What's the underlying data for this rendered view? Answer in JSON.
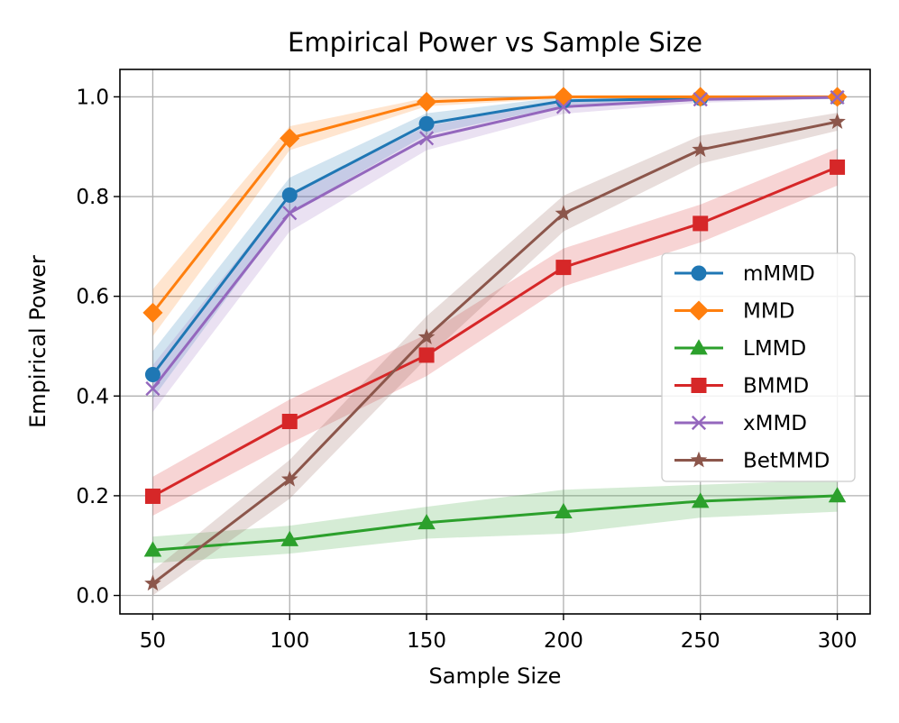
{
  "chart_data": {
    "type": "line",
    "title": "Empirical Power vs Sample Size",
    "xlabel": "Sample Size",
    "ylabel": "Empirical Power",
    "x": [
      50,
      100,
      150,
      200,
      250,
      300
    ],
    "xlim": [
      38,
      312
    ],
    "ylim": [
      -0.037,
      1.055
    ],
    "xticks": [
      50,
      100,
      150,
      200,
      250,
      300
    ],
    "yticks": [
      0.0,
      0.2,
      0.4,
      0.6,
      0.8,
      1.0
    ],
    "ytick_labels": [
      "0.0",
      "0.2",
      "0.4",
      "0.6",
      "0.8",
      "1.0"
    ],
    "grid": true,
    "legend_position": "center-right",
    "series": [
      {
        "name": "mMMD",
        "color": "#1f77b4",
        "marker": "circle",
        "values": [
          0.443,
          0.803,
          0.946,
          0.992,
          0.997,
          0.999
        ],
        "lower": [
          0.395,
          0.768,
          0.924,
          0.982,
          0.992,
          0.996
        ],
        "upper": [
          0.49,
          0.838,
          0.967,
          1.0,
          1.0,
          1.0
        ]
      },
      {
        "name": "MMD",
        "color": "#ff7f0e",
        "marker": "diamond",
        "values": [
          0.567,
          0.917,
          0.99,
          1.0,
          1.0,
          1.0
        ],
        "lower": [
          0.52,
          0.893,
          0.981,
          0.997,
          0.998,
          0.998
        ],
        "upper": [
          0.614,
          0.941,
          0.998,
          1.0,
          1.0,
          1.0
        ]
      },
      {
        "name": "LMMD",
        "color": "#2ca02c",
        "marker": "triangle",
        "values": [
          0.091,
          0.112,
          0.146,
          0.168,
          0.189,
          0.2
        ],
        "lower": [
          0.065,
          0.084,
          0.114,
          0.124,
          0.156,
          0.168
        ],
        "upper": [
          0.118,
          0.14,
          0.178,
          0.212,
          0.222,
          0.232
        ]
      },
      {
        "name": "BMMD",
        "color": "#d62728",
        "marker": "square",
        "values": [
          0.199,
          0.349,
          0.482,
          0.658,
          0.746,
          0.859
        ],
        "lower": [
          0.16,
          0.305,
          0.44,
          0.62,
          0.708,
          0.822
        ],
        "upper": [
          0.238,
          0.393,
          0.524,
          0.696,
          0.784,
          0.896
        ]
      },
      {
        "name": "xMMD",
        "color": "#9467bd",
        "marker": "x",
        "values": [
          0.415,
          0.767,
          0.917,
          0.98,
          0.995,
          0.999
        ],
        "lower": [
          0.368,
          0.73,
          0.893,
          0.966,
          0.988,
          0.996
        ],
        "upper": [
          0.462,
          0.804,
          0.941,
          0.994,
          1.0,
          1.0
        ]
      },
      {
        "name": "BetMMD",
        "color": "#8c564b",
        "marker": "star",
        "values": [
          0.024,
          0.233,
          0.518,
          0.766,
          0.894,
          0.95
        ],
        "lower": [
          0.0,
          0.194,
          0.476,
          0.73,
          0.866,
          0.932
        ],
        "upper": [
          0.05,
          0.272,
          0.56,
          0.802,
          0.922,
          0.968
        ]
      }
    ]
  }
}
